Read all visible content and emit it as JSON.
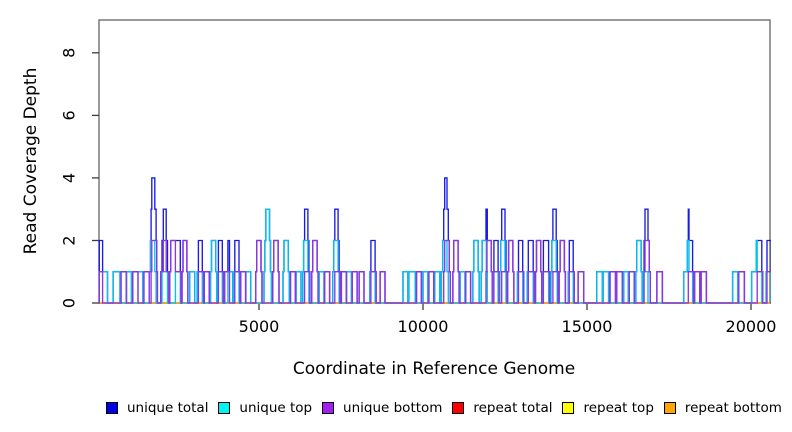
{
  "chart_data": {
    "type": "step-line",
    "title": "",
    "xlabel": "Coordinate in Reference Genome",
    "ylabel": "Read Coverage Depth",
    "xlim": [
      120,
      20580
    ],
    "ylim": [
      0,
      9.05
    ],
    "xticks": [
      5000,
      10000,
      15000,
      20000
    ],
    "yticks": [
      0,
      2,
      4,
      6,
      8
    ],
    "grid": false,
    "legend_position": "bottom",
    "frame_color": "#6e6e6e",
    "tick_color": "#3c3c3c",
    "series": [
      {
        "name": "unique total",
        "color": "#1a1ae6",
        "derive": "sum_of_top_and_bottom"
      },
      {
        "name": "unique top",
        "color": "#00c3ef",
        "reads": [
          [
            130,
            380
          ],
          [
            550,
            760
          ],
          [
            960,
            1110
          ],
          [
            1310,
            1460
          ],
          [
            1650,
            1820
          ],
          [
            1690,
            1860
          ],
          [
            2040,
            2210
          ],
          [
            2450,
            2600
          ],
          [
            2890,
            3040
          ],
          [
            3110,
            3270
          ],
          [
            3520,
            3680
          ],
          [
            3550,
            3710
          ],
          [
            3730,
            3880
          ],
          [
            4050,
            4200
          ],
          [
            4230,
            4390
          ],
          [
            4600,
            4750
          ],
          [
            5150,
            5320
          ],
          [
            5180,
            5350
          ],
          [
            5210,
            5380
          ],
          [
            5730,
            5890
          ],
          [
            5760,
            5920
          ],
          [
            6130,
            6280
          ],
          [
            6330,
            6490
          ],
          [
            6360,
            6520
          ],
          [
            6830,
            6980
          ],
          [
            7250,
            7410
          ],
          [
            7280,
            7440
          ],
          [
            7670,
            7820
          ],
          [
            8380,
            8540
          ],
          [
            9390,
            9540
          ],
          [
            9570,
            9760
          ],
          [
            10000,
            10150
          ],
          [
            10360,
            10510
          ],
          [
            10560,
            10730
          ],
          [
            10600,
            10770
          ],
          [
            11130,
            11280
          ],
          [
            11520,
            11680
          ],
          [
            11550,
            11710
          ],
          [
            11770,
            11930
          ],
          [
            11800,
            11960
          ],
          [
            12130,
            12290
          ],
          [
            12340,
            12500
          ],
          [
            12370,
            12530
          ],
          [
            12880,
            13040
          ],
          [
            13180,
            13360
          ],
          [
            13640,
            13830
          ],
          [
            13900,
            14060
          ],
          [
            13930,
            14090
          ],
          [
            14430,
            14580
          ],
          [
            15300,
            15470
          ],
          [
            15490,
            15660
          ],
          [
            16120,
            16260
          ],
          [
            16490,
            16650
          ],
          [
            16520,
            16680
          ],
          [
            16700,
            16860
          ],
          [
            17950,
            18110
          ],
          [
            18060,
            18220
          ],
          [
            19440,
            19600
          ],
          [
            20020,
            20190
          ],
          [
            20160,
            20330
          ],
          [
            20460,
            20620
          ]
        ]
      },
      {
        "name": "unique bottom",
        "color": "#8f35e0",
        "reads": [
          [
            130,
            230
          ],
          [
            790,
            950
          ],
          [
            1150,
            1310
          ],
          [
            1490,
            1650
          ],
          [
            1710,
            1880
          ],
          [
            1730,
            1900
          ],
          [
            2000,
            2170
          ],
          [
            2080,
            2250
          ],
          [
            2280,
            2450
          ],
          [
            2310,
            2480
          ],
          [
            2480,
            2620
          ],
          [
            2650,
            2800
          ],
          [
            2680,
            2830
          ],
          [
            3150,
            3310
          ],
          [
            3330,
            3480
          ],
          [
            3760,
            3910
          ],
          [
            3950,
            4100
          ],
          [
            4260,
            4420
          ],
          [
            4440,
            4590
          ],
          [
            4900,
            5060
          ],
          [
            4930,
            5090
          ],
          [
            5420,
            5580
          ],
          [
            5450,
            5610
          ],
          [
            5960,
            6110
          ],
          [
            6390,
            6550
          ],
          [
            6610,
            6770
          ],
          [
            6640,
            6800
          ],
          [
            7000,
            7150
          ],
          [
            7310,
            7470
          ],
          [
            7510,
            7660
          ],
          [
            7840,
            7990
          ],
          [
            8050,
            8200
          ],
          [
            8410,
            8570
          ],
          [
            8690,
            8840
          ],
          [
            9800,
            9950
          ],
          [
            10180,
            10330
          ],
          [
            10630,
            10800
          ],
          [
            10660,
            10830
          ],
          [
            10910,
            11070
          ],
          [
            10940,
            11100
          ],
          [
            11300,
            11450
          ],
          [
            11920,
            12080
          ],
          [
            11950,
            12110
          ],
          [
            12160,
            12320
          ],
          [
            12400,
            12560
          ],
          [
            12580,
            12740
          ],
          [
            12610,
            12770
          ],
          [
            12910,
            13070
          ],
          [
            13210,
            13390
          ],
          [
            13430,
            13590
          ],
          [
            13460,
            13620
          ],
          [
            13670,
            13860
          ],
          [
            13960,
            14120
          ],
          [
            14150,
            14310
          ],
          [
            14180,
            14340
          ],
          [
            14460,
            14610
          ],
          [
            14730,
            14900
          ],
          [
            15700,
            15870
          ],
          [
            15910,
            16080
          ],
          [
            16290,
            16440
          ],
          [
            16740,
            16900
          ],
          [
            16770,
            16930
          ],
          [
            17130,
            17300
          ],
          [
            18090,
            18250
          ],
          [
            18280,
            18440
          ],
          [
            18480,
            18640
          ],
          [
            19630,
            19800
          ],
          [
            20190,
            20360
          ],
          [
            20490,
            20650
          ]
        ]
      },
      {
        "name": "repeat total",
        "color": "#ee0000",
        "reads": []
      },
      {
        "name": "repeat top",
        "color": "#ffff00",
        "reads": []
      },
      {
        "name": "repeat bottom",
        "color": "#ffa500",
        "reads": []
      }
    ],
    "legend": [
      {
        "label": "unique total",
        "color": "#0000e6"
      },
      {
        "label": "unique top",
        "color": "#00f2f2"
      },
      {
        "label": "unique bottom",
        "color": "#a020f0"
      },
      {
        "label": "repeat total",
        "color": "#ff0000"
      },
      {
        "label": "repeat top",
        "color": "#ffff00"
      },
      {
        "label": "repeat bottom",
        "color": "#ffa500"
      }
    ]
  }
}
